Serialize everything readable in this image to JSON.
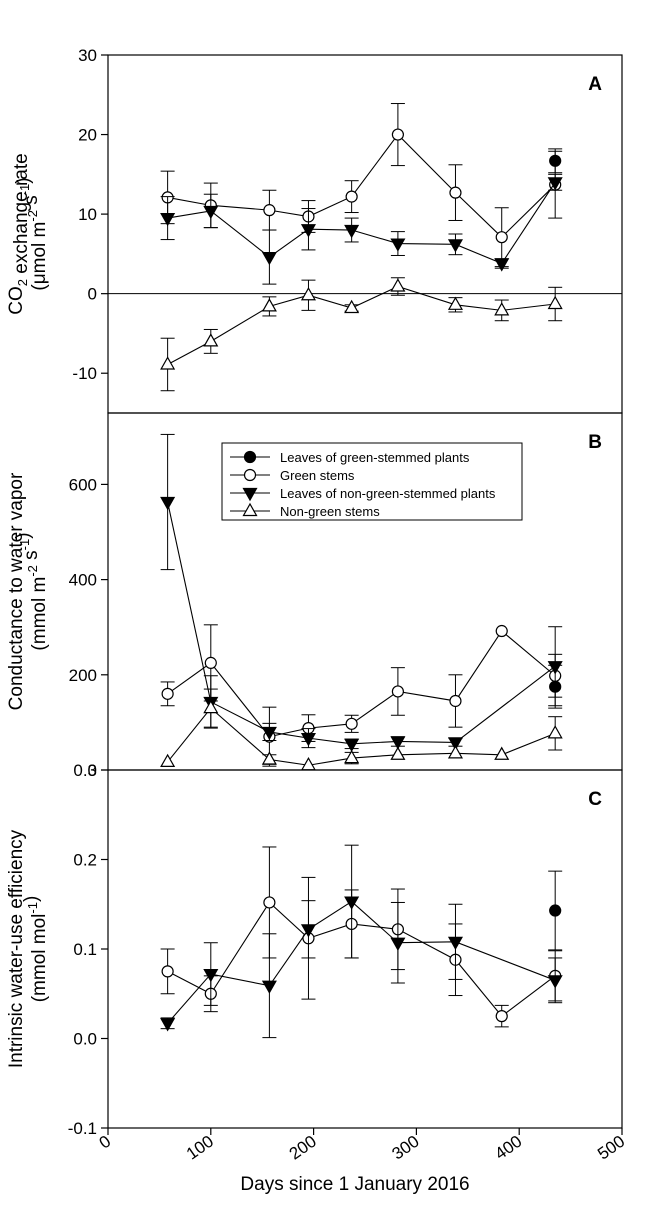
{
  "chart_data": {
    "type": "line",
    "xlabel": "Days since 1 January 2016",
    "xlim": [
      0,
      500
    ],
    "xticks": [
      "0",
      "100",
      "200",
      "300",
      "400",
      "500"
    ],
    "legend": {
      "placement": "top-center of panel B",
      "entries": [
        "Leaves of green-stemmed plants",
        "Green stems",
        "Leaves of non-green-stemmed plants",
        "Non-green stems"
      ]
    },
    "panels": [
      {
        "letter": "A",
        "ylabel_line1": "CO2 exchange rate",
        "ylabel_line2": "(μmol m-2 s-1)",
        "ylim": [
          -15,
          30
        ],
        "yticks": [
          "-10",
          "0",
          "10",
          "20",
          "30"
        ],
        "zero_line": true,
        "series": [
          {
            "name": "Leaves of green-stemmed plants",
            "x": [
              435
            ],
            "y": [
              16.7
            ],
            "err": [
              1.5
            ],
            "connect": false
          },
          {
            "name": "Green stems",
            "x": [
              58,
              100,
              157,
              195,
              237,
              282,
              338,
              383,
              435
            ],
            "y": [
              12.1,
              11.1,
              10.5,
              9.7,
              12.2,
              20.0,
              12.7,
              7.1,
              13.7
            ],
            "err": [
              3.3,
              2.8,
              2.5,
              2.0,
              2.0,
              3.9,
              3.5,
              3.7,
              4.2
            ],
            "connect": true
          },
          {
            "name": "Leaves of non-green-stemmed plants",
            "x": [
              58,
              100,
              157,
              195,
              237,
              282,
              338,
              383,
              435
            ],
            "y": [
              9.5,
              10.4,
              4.6,
              8.1,
              8.0,
              6.3,
              6.2,
              3.8,
              14.0
            ],
            "err": [
              2.7,
              2.1,
              3.4,
              2.6,
              1.5,
              1.5,
              1.3,
              0.6,
              1.0
            ],
            "connect": true
          },
          {
            "name": "Non-green stems",
            "x": [
              58,
              100,
              157,
              195,
              237,
              282,
              338,
              383,
              435
            ],
            "y": [
              -8.9,
              -6.0,
              -1.6,
              -0.2,
              -1.8,
              0.9,
              -1.4,
              -2.1,
              -1.3
            ],
            "err": [
              3.3,
              1.5,
              1.2,
              1.9,
              0.4,
              1.1,
              0.9,
              1.3,
              2.1
            ],
            "connect": true
          }
        ]
      },
      {
        "letter": "B",
        "ylabel_line1": "Conductance to water vapor",
        "ylabel_line2": "(mmol m-2 s-1)",
        "ylim": [
          0,
          750
        ],
        "yticks": [
          "0",
          "200",
          "400",
          "600"
        ],
        "zero_line": false,
        "series": [
          {
            "name": "Leaves of green-stemmed plants",
            "x": [
              435
            ],
            "y": [
              175
            ],
            "err": [
              45
            ],
            "connect": false
          },
          {
            "name": "Green stems",
            "x": [
              58,
              100,
              157,
              195,
              237,
              282,
              338,
              383,
              435
            ],
            "y": [
              160,
              225,
              70,
              88,
              97,
              165,
              145,
              292,
              198
            ],
            "err": [
              25,
              80,
              62,
              28,
              18,
              50,
              55,
              0,
              45
            ],
            "connect": true
          },
          {
            "name": "Leaves of non-green-stemmed plants",
            "x": [
              58,
              100,
              157,
              195,
              237,
              282,
              338,
              435
            ],
            "y": [
              563,
              143,
              80,
              67,
              55,
              60,
              58,
              218
            ],
            "err": [
              142,
              55,
              18,
              20,
              10,
              10,
              8,
              83
            ],
            "connect": true
          },
          {
            "name": "Non-green stems",
            "x": [
              58,
              100,
              157,
              195,
              237,
              282,
              338,
              383,
              435
            ],
            "y": [
              17,
              130,
              22,
              10,
              25,
              32,
              35,
              32,
              77
            ],
            "err": [
              0,
              40,
              10,
              0,
              12,
              0,
              0,
              0,
              35
            ],
            "connect": true
          }
        ]
      },
      {
        "letter": "C",
        "ylabel_line1": "Intrinsic water-use efficiency",
        "ylabel_line2": "(mmol mol-1)",
        "ylim": [
          -0.1,
          0.3
        ],
        "yticks": [
          "-0.1",
          "0.0",
          "0.1",
          "0.2",
          "0.3"
        ],
        "zero_line": false,
        "series": [
          {
            "name": "Leaves of green-stemmed plants",
            "x": [
              435
            ],
            "y": [
              0.143
            ],
            "err": [
              0.044
            ],
            "connect": false
          },
          {
            "name": "Green stems",
            "x": [
              58,
              100,
              157,
              195,
              237,
              282,
              338,
              383,
              435
            ],
            "y": [
              0.075,
              0.05,
              0.152,
              0.112,
              0.128,
              0.122,
              0.088,
              0.025,
              0.07
            ],
            "err": [
              0.025,
              0.02,
              0.062,
              0.068,
              0.038,
              0.045,
              0.04,
              0.012,
              0.028
            ],
            "connect": true
          },
          {
            "name": "Leaves of non-green-stemmed plants",
            "x": [
              58,
              100,
              157,
              195,
              237,
              282,
              338,
              435
            ],
            "y": [
              0.017,
              0.072,
              0.059,
              0.122,
              0.153,
              0.107,
              0.108,
              0.065
            ],
            "err": [
              0.006,
              0.035,
              0.058,
              0.032,
              0.063,
              0.045,
              0.042,
              0.025
            ],
            "connect": true
          }
        ]
      }
    ]
  }
}
